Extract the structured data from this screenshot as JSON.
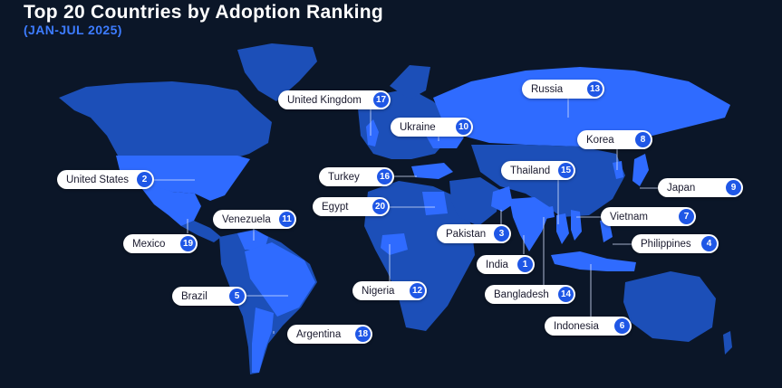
{
  "title": "Top 20 Countries by Adoption Ranking",
  "subtitle": "(JAN-JUL 2025)",
  "colors": {
    "background": "#0b1628",
    "highlight": "#2f6bff",
    "land": "#1c4fb8",
    "land_dark": "#17429e",
    "badge": "#1f57e6",
    "leader_line": "#d7e2ff"
  },
  "countries": [
    {
      "name": "United Kingdom",
      "rank": "17"
    },
    {
      "name": "Russia",
      "rank": "13"
    },
    {
      "name": "Ukraine",
      "rank": "10"
    },
    {
      "name": "Korea",
      "rank": "8"
    },
    {
      "name": "United States",
      "rank": "2"
    },
    {
      "name": "Turkey",
      "rank": "16"
    },
    {
      "name": "Thailand",
      "rank": "15"
    },
    {
      "name": "Japan",
      "rank": "9"
    },
    {
      "name": "Egypt",
      "rank": "20"
    },
    {
      "name": "Venezuela",
      "rank": "11"
    },
    {
      "name": "Vietnam",
      "rank": "7"
    },
    {
      "name": "Pakistan",
      "rank": "3"
    },
    {
      "name": "Mexico",
      "rank": "19"
    },
    {
      "name": "Philippines",
      "rank": "4"
    },
    {
      "name": "India",
      "rank": "1"
    },
    {
      "name": "Nigeria",
      "rank": "12"
    },
    {
      "name": "Brazil",
      "rank": "5"
    },
    {
      "name": "Bangladesh",
      "rank": "14"
    },
    {
      "name": "Indonesia",
      "rank": "6"
    },
    {
      "name": "Argentina",
      "rank": "18"
    }
  ]
}
